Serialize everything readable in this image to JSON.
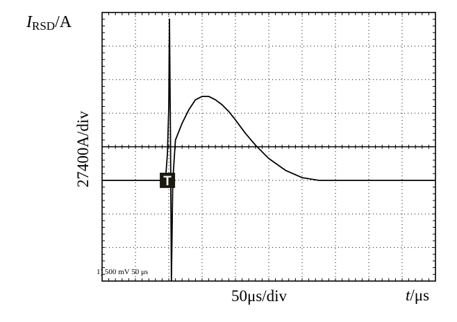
{
  "chart_data": {
    "type": "line",
    "y_axis_title": {
      "symbol": "I",
      "subscript": "RSD",
      "unit": "/A"
    },
    "y_scale_label": "27400A/div",
    "x_scale_label": "50μs/div",
    "x_axis_title": {
      "symbol": "t",
      "unit": "/μs"
    },
    "scope_note": "1) 500 mV 50 μs",
    "trigger_marker": "T",
    "grid": {
      "x_divisions": 10,
      "y_divisions": 8,
      "style": "dotted"
    },
    "xlim": [
      0,
      10
    ],
    "ylim": [
      -4,
      4
    ],
    "trace_color": "#000000",
    "series": [
      {
        "x": [
          0,
          0.5,
          1.0,
          1.5,
          1.9,
          1.96,
          2.0,
          2.02,
          2.05,
          2.08,
          2.12,
          2.2,
          2.4,
          2.6,
          2.8,
          3.0,
          3.2,
          3.4,
          3.6,
          3.8,
          4.0,
          4.3,
          4.6,
          5.0,
          5.5,
          6.0,
          6.5,
          7.0,
          7.5,
          8.0,
          8.5,
          9.0,
          9.5,
          10.0
        ],
        "values": [
          -1.0,
          -1.0,
          -1.0,
          -1.0,
          -1.0,
          -0.2,
          1.2,
          3.8,
          0.5,
          -4.0,
          -1.0,
          0.2,
          0.7,
          1.1,
          1.4,
          1.5,
          1.5,
          1.4,
          1.25,
          1.05,
          0.8,
          0.4,
          0.05,
          -0.35,
          -0.7,
          -0.92,
          -1.0,
          -1.0,
          -1.0,
          -1.0,
          -1.0,
          -1.0,
          -1.0,
          -1.0
        ]
      }
    ]
  }
}
